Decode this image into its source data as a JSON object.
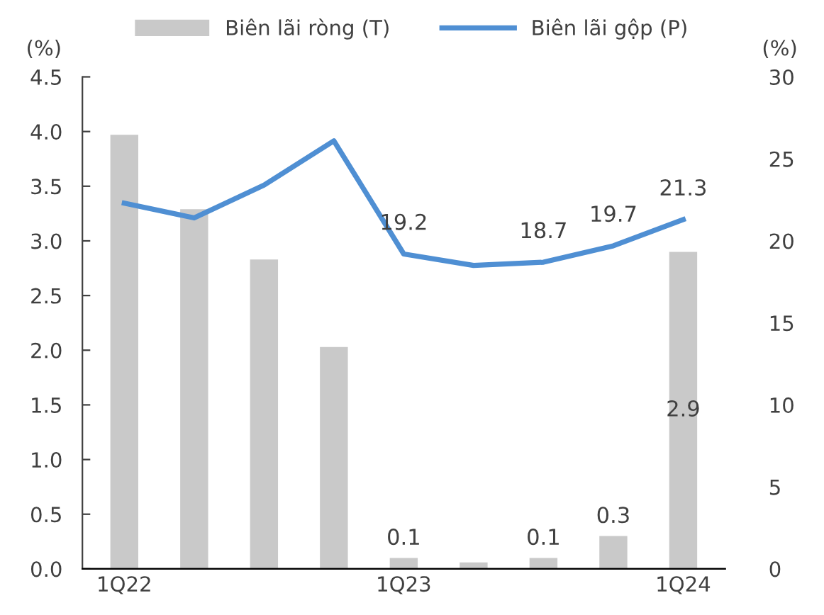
{
  "chart_data": {
    "type": "bar",
    "categories": [
      "1Q22",
      null,
      null,
      null,
      "1Q23",
      null,
      null,
      null,
      "1Q24"
    ],
    "ylabel": "(%)",
    "y2label": "(%)",
    "ylim": [
      0,
      4.5
    ],
    "yticks": [
      {
        "value": 0,
        "label": "0.0"
      },
      0.5,
      {
        "value": 1,
        "label": "1.0"
      },
      1.5,
      {
        "value": 2,
        "label": "2.0"
      },
      2.5,
      {
        "value": 3,
        "label": "3.0"
      },
      3.5,
      {
        "value": 4,
        "label": "4.0"
      },
      4.5
    ],
    "y2lim": [
      0,
      30
    ],
    "y2ticks": [
      0,
      5,
      10,
      15,
      20,
      25,
      30
    ],
    "series": [
      {
        "name": "Biên lãi ròng (T)",
        "color": "#c9c9c9",
        "values": [
          3.97,
          3.29,
          2.83,
          2.03,
          0.1,
          0.06,
          0.1,
          0.3,
          2.9
        ],
        "value_labels": [
          null,
          null,
          null,
          null,
          "0.1",
          null,
          "0.1",
          "0.3",
          "2.9"
        ]
      },
      {
        "name": "Biên lãi gộp (P)",
        "type": "line",
        "axis": "y2",
        "color": "#4f8fd3",
        "values": [
          22.3,
          21.4,
          23.4,
          26.1,
          19.2,
          18.5,
          18.7,
          19.7,
          21.3
        ],
        "value_labels": [
          null,
          null,
          null,
          null,
          "19.2",
          null,
          "18.7",
          "19.7",
          "21.3"
        ]
      }
    ],
    "legend": "top",
    "grid": false,
    "marker": "none",
    "line_style": "solid"
  }
}
